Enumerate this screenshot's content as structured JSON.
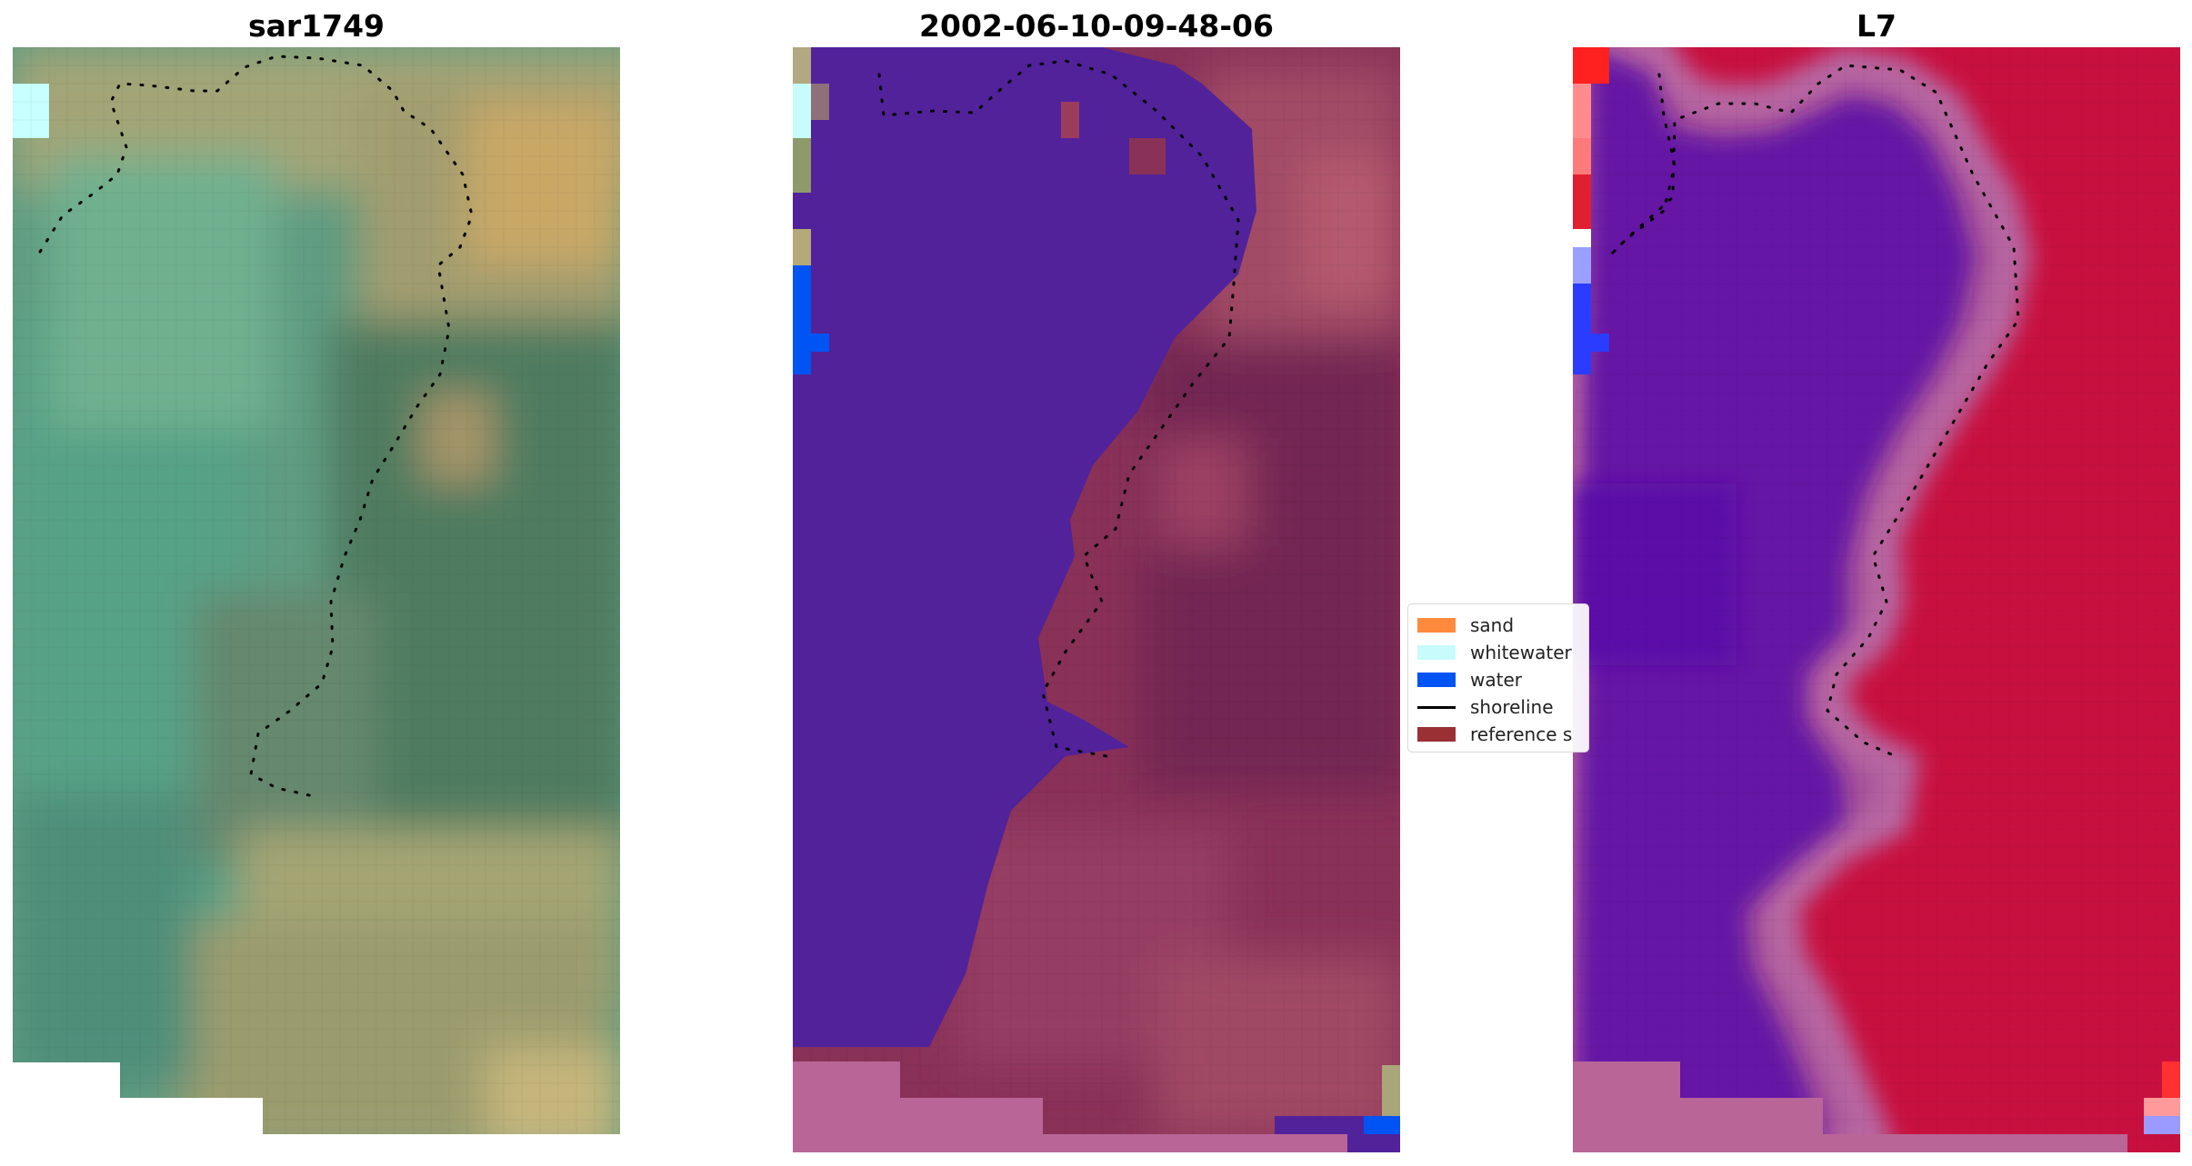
{
  "panels": {
    "left": {
      "title": "sar1749"
    },
    "middle": {
      "title": "2002-06-10-09-48-06"
    },
    "right": {
      "title": "L7"
    }
  },
  "legend": {
    "items": [
      {
        "label": "sand",
        "color": "#ff8a3d",
        "kind": "patch"
      },
      {
        "label": "whitewater",
        "color": "#c8fbfb",
        "kind": "patch"
      },
      {
        "label": "water",
        "color": "#0054f4",
        "kind": "patch"
      },
      {
        "label": "shoreline",
        "color": "#000000",
        "kind": "line"
      },
      {
        "label": "reference s",
        "color": "#9a3034",
        "kind": "patch"
      }
    ]
  },
  "colors": {
    "classified_sea": "#52229a",
    "no_data_pink": "#b96597",
    "index_land": "#c8103f",
    "index_water": "#5e0fa8"
  }
}
